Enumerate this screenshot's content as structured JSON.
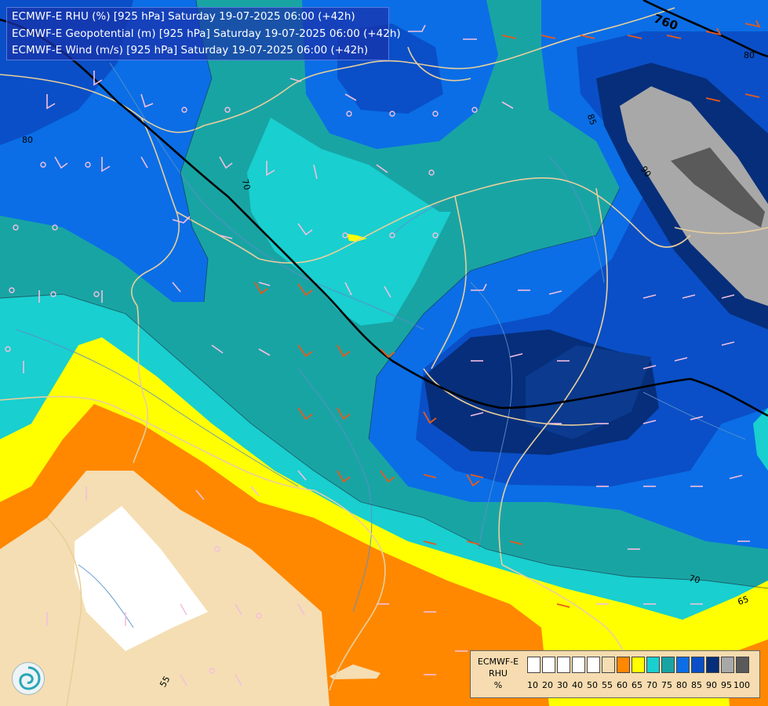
{
  "header": {
    "title_lines": [
      "ECMWF-E RHU (%) [925 hPa] Saturday 19-07-2025 06:00 (+42h)",
      "ECMWF-E Geopotential (m) [925 hPa] Saturday 19-07-2025 06:00 (+42h)",
      "ECMWF-E Wind (m/s) [925 hPa] Saturday 19-07-2025 06:00 (+42h)"
    ]
  },
  "legend": {
    "label_lines": [
      "ECMWF-E",
      "RHU",
      "%"
    ],
    "tick_labels": [
      "10",
      "20",
      "30",
      "40",
      "50",
      "55",
      "60",
      "65",
      "70",
      "75",
      "80",
      "85",
      "90",
      "95",
      "100"
    ],
    "colors": [
      "#ffffff",
      "#ffffff",
      "#ffffff",
      "#ffffff",
      "#ffffff",
      "#f5deb3",
      "#ff8800",
      "#ffff00",
      "#19cfcf",
      "#19a4a4",
      "#0b6ee6",
      "#0a4fc7",
      "#062e7a",
      "#a8a8a8",
      "#5a5a5a"
    ]
  },
  "contour_labels": {
    "geopotential": [
      "760"
    ],
    "rhu": [
      "80",
      "80",
      "70",
      "85",
      "90",
      "70",
      "65",
      "55"
    ]
  },
  "map_colors": {
    "white": "#ffffff",
    "wheat": "#f5deb3",
    "orange": "#ff8800",
    "yellow": "#ffff00",
    "cyan": "#19cfcf",
    "teal": "#19a4a4",
    "blue": "#0b6ee6",
    "medblue": "#0a4fc7",
    "navy": "#062e7a",
    "grey": "#a8a8a8",
    "darkgrey": "#5a5a5a",
    "border": "#e8cf9c",
    "river": "#5b8fc9",
    "height_contour": "#000000"
  },
  "icons": {
    "logo": "ecmwf-swirl-logo"
  }
}
